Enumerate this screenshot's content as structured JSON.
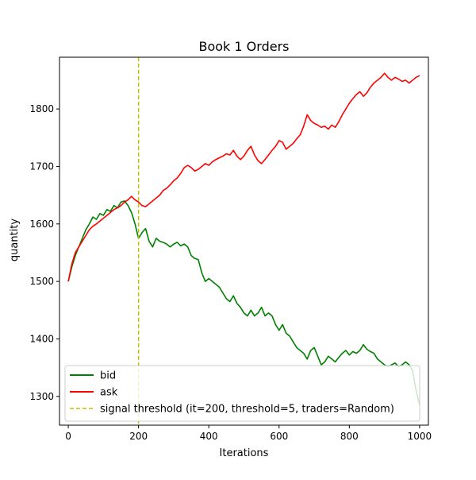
{
  "chart_data": {
    "type": "line",
    "title": "Book 1 Orders",
    "xlabel": "Iterations",
    "ylabel": "quantity",
    "xlim": [
      -25,
      1025
    ],
    "ylim": [
      1250,
      1890
    ],
    "xticks": [
      0,
      200,
      400,
      600,
      800,
      1000
    ],
    "yticks": [
      1300,
      1400,
      1500,
      1600,
      1700,
      1800
    ],
    "grid": false,
    "legend_position": "lower-left",
    "series": [
      {
        "name": "bid",
        "color": "#008000",
        "points": [
          [
            0,
            1500
          ],
          [
            10,
            1525
          ],
          [
            20,
            1545
          ],
          [
            30,
            1560
          ],
          [
            40,
            1575
          ],
          [
            50,
            1590
          ],
          [
            60,
            1600
          ],
          [
            70,
            1612
          ],
          [
            80,
            1608
          ],
          [
            90,
            1618
          ],
          [
            100,
            1615
          ],
          [
            110,
            1625
          ],
          [
            120,
            1622
          ],
          [
            130,
            1632
          ],
          [
            140,
            1628
          ],
          [
            150,
            1638
          ],
          [
            160,
            1640
          ],
          [
            170,
            1632
          ],
          [
            180,
            1620
          ],
          [
            190,
            1600
          ],
          [
            200,
            1575
          ],
          [
            210,
            1585
          ],
          [
            220,
            1592
          ],
          [
            230,
            1570
          ],
          [
            240,
            1560
          ],
          [
            250,
            1575
          ],
          [
            260,
            1570
          ],
          [
            270,
            1568
          ],
          [
            280,
            1565
          ],
          [
            290,
            1560
          ],
          [
            300,
            1565
          ],
          [
            310,
            1568
          ],
          [
            320,
            1562
          ],
          [
            330,
            1565
          ],
          [
            340,
            1560
          ],
          [
            350,
            1545
          ],
          [
            360,
            1540
          ],
          [
            370,
            1538
          ],
          [
            380,
            1515
          ],
          [
            390,
            1500
          ],
          [
            400,
            1505
          ],
          [
            410,
            1500
          ],
          [
            420,
            1495
          ],
          [
            430,
            1490
          ],
          [
            440,
            1480
          ],
          [
            450,
            1470
          ],
          [
            460,
            1465
          ],
          [
            470,
            1475
          ],
          [
            480,
            1462
          ],
          [
            490,
            1455
          ],
          [
            500,
            1445
          ],
          [
            510,
            1440
          ],
          [
            520,
            1450
          ],
          [
            530,
            1440
          ],
          [
            540,
            1445
          ],
          [
            550,
            1455
          ],
          [
            560,
            1440
          ],
          [
            570,
            1445
          ],
          [
            580,
            1440
          ],
          [
            590,
            1425
          ],
          [
            600,
            1415
          ],
          [
            610,
            1425
          ],
          [
            620,
            1410
          ],
          [
            630,
            1405
          ],
          [
            640,
            1395
          ],
          [
            650,
            1385
          ],
          [
            660,
            1380
          ],
          [
            670,
            1375
          ],
          [
            680,
            1365
          ],
          [
            690,
            1380
          ],
          [
            700,
            1385
          ],
          [
            710,
            1370
          ],
          [
            720,
            1355
          ],
          [
            730,
            1360
          ],
          [
            740,
            1370
          ],
          [
            750,
            1365
          ],
          [
            760,
            1360
          ],
          [
            770,
            1368
          ],
          [
            780,
            1375
          ],
          [
            790,
            1380
          ],
          [
            800,
            1372
          ],
          [
            810,
            1378
          ],
          [
            820,
            1375
          ],
          [
            830,
            1380
          ],
          [
            840,
            1390
          ],
          [
            850,
            1382
          ],
          [
            860,
            1378
          ],
          [
            870,
            1375
          ],
          [
            880,
            1365
          ],
          [
            890,
            1360
          ],
          [
            900,
            1355
          ],
          [
            910,
            1352
          ],
          [
            920,
            1355
          ],
          [
            930,
            1358
          ],
          [
            940,
            1352
          ],
          [
            950,
            1355
          ],
          [
            960,
            1360
          ],
          [
            970,
            1355
          ],
          [
            980,
            1345
          ],
          [
            990,
            1310
          ],
          [
            1000,
            1285
          ]
        ]
      },
      {
        "name": "ask",
        "color": "#ff0000",
        "points": [
          [
            0,
            1500
          ],
          [
            10,
            1530
          ],
          [
            20,
            1550
          ],
          [
            30,
            1560
          ],
          [
            40,
            1570
          ],
          [
            50,
            1580
          ],
          [
            60,
            1590
          ],
          [
            70,
            1596
          ],
          [
            80,
            1600
          ],
          [
            90,
            1605
          ],
          [
            100,
            1610
          ],
          [
            110,
            1615
          ],
          [
            120,
            1620
          ],
          [
            130,
            1625
          ],
          [
            140,
            1628
          ],
          [
            150,
            1632
          ],
          [
            160,
            1638
          ],
          [
            170,
            1642
          ],
          [
            180,
            1648
          ],
          [
            190,
            1642
          ],
          [
            200,
            1638
          ],
          [
            210,
            1632
          ],
          [
            220,
            1630
          ],
          [
            230,
            1635
          ],
          [
            240,
            1640
          ],
          [
            250,
            1645
          ],
          [
            260,
            1650
          ],
          [
            270,
            1658
          ],
          [
            280,
            1662
          ],
          [
            290,
            1668
          ],
          [
            300,
            1675
          ],
          [
            310,
            1680
          ],
          [
            320,
            1688
          ],
          [
            330,
            1698
          ],
          [
            340,
            1702
          ],
          [
            350,
            1698
          ],
          [
            360,
            1692
          ],
          [
            370,
            1695
          ],
          [
            380,
            1700
          ],
          [
            390,
            1705
          ],
          [
            400,
            1702
          ],
          [
            410,
            1708
          ],
          [
            420,
            1712
          ],
          [
            430,
            1715
          ],
          [
            440,
            1718
          ],
          [
            450,
            1722
          ],
          [
            460,
            1720
          ],
          [
            470,
            1728
          ],
          [
            480,
            1718
          ],
          [
            490,
            1712
          ],
          [
            500,
            1718
          ],
          [
            510,
            1728
          ],
          [
            520,
            1735
          ],
          [
            530,
            1720
          ],
          [
            540,
            1710
          ],
          [
            550,
            1705
          ],
          [
            560,
            1712
          ],
          [
            570,
            1720
          ],
          [
            580,
            1728
          ],
          [
            590,
            1735
          ],
          [
            600,
            1745
          ],
          [
            610,
            1742
          ],
          [
            620,
            1730
          ],
          [
            630,
            1735
          ],
          [
            640,
            1740
          ],
          [
            650,
            1748
          ],
          [
            660,
            1755
          ],
          [
            670,
            1770
          ],
          [
            680,
            1790
          ],
          [
            690,
            1780
          ],
          [
            700,
            1775
          ],
          [
            710,
            1772
          ],
          [
            720,
            1768
          ],
          [
            730,
            1770
          ],
          [
            740,
            1765
          ],
          [
            750,
            1772
          ],
          [
            760,
            1768
          ],
          [
            770,
            1778
          ],
          [
            780,
            1790
          ],
          [
            790,
            1800
          ],
          [
            800,
            1810
          ],
          [
            810,
            1818
          ],
          [
            820,
            1825
          ],
          [
            830,
            1830
          ],
          [
            840,
            1822
          ],
          [
            850,
            1828
          ],
          [
            860,
            1838
          ],
          [
            870,
            1845
          ],
          [
            880,
            1850
          ],
          [
            890,
            1855
          ],
          [
            900,
            1862
          ],
          [
            910,
            1855
          ],
          [
            920,
            1850
          ],
          [
            930,
            1855
          ],
          [
            940,
            1852
          ],
          [
            950,
            1848
          ],
          [
            960,
            1850
          ],
          [
            970,
            1845
          ],
          [
            980,
            1850
          ],
          [
            990,
            1855
          ],
          [
            1000,
            1858
          ]
        ]
      },
      {
        "name": "signal threshold (it=200, threshold=5, traders=Random)",
        "color": "#bfbf00",
        "style": "dashed",
        "vline_x": 200
      }
    ]
  }
}
